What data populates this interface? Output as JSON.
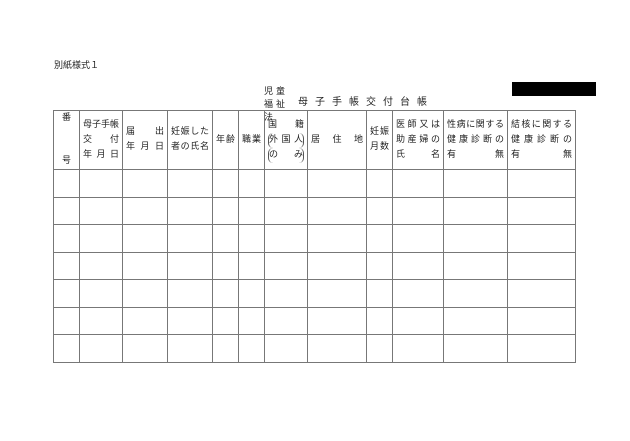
{
  "document": {
    "form_id": "別紙様式１",
    "law_label": "児童福祉法",
    "title": "母子手帳交付台帳",
    "redacted": true
  },
  "table": {
    "headers": [
      {
        "lines": [
          "番",
          "号"
        ]
      },
      {
        "lines": [
          "母子手帳",
          "交　　付",
          "年 月 日"
        ]
      },
      {
        "lines": [
          "届　　出",
          "年 月 日"
        ]
      },
      {
        "lines": [
          "妊娠した",
          "者の氏名"
        ]
      },
      {
        "lines": [
          "年齢"
        ]
      },
      {
        "lines": [
          "職業"
        ]
      },
      {
        "lines": [
          "国　　籍",
          "外国人",
          "の　み"
        ]
      },
      {
        "lines": [
          "居　住　地"
        ]
      },
      {
        "lines": [
          "妊娠",
          "月数"
        ]
      },
      {
        "lines": [
          "医師又は",
          "助産婦の",
          "氏　　名"
        ]
      },
      {
        "lines": [
          "性病に関する",
          "健康診断の",
          "有　　無"
        ]
      },
      {
        "lines": [
          "結核に関する",
          "健康診断の",
          "有　　無"
        ]
      }
    ],
    "row_count": 7
  }
}
